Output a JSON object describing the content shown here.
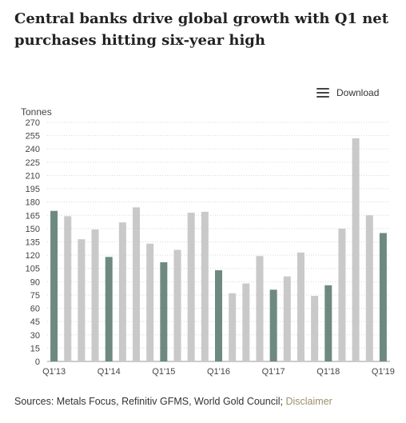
{
  "header": {
    "title": "Central banks drive global growth with Q1 net purchases hitting six-year high"
  },
  "toolbar": {
    "download_label": "Download"
  },
  "footer": {
    "sources_text": "Sources: Metals Focus, Refinitiv GFMS, World Gold Council; ",
    "disclaimer_label": "Disclaimer"
  },
  "chart_data": {
    "type": "bar",
    "ylabel": "Tonnes",
    "ylim": [
      0,
      270
    ],
    "ytick_step": 15,
    "grid": true,
    "categories": [
      "Q1'13",
      "Q2'13",
      "Q3'13",
      "Q4'13",
      "Q1'14",
      "Q2'14",
      "Q3'14",
      "Q4'14",
      "Q1'15",
      "Q2'15",
      "Q3'15",
      "Q4'15",
      "Q1'16",
      "Q2'16",
      "Q3'16",
      "Q4'16",
      "Q1'17",
      "Q2'17",
      "Q3'17",
      "Q4'17",
      "Q1'18",
      "Q2'18",
      "Q3'18",
      "Q4'18",
      "Q1'19"
    ],
    "xtick_labels": [
      "Q1'13",
      "Q1'14",
      "Q1'15",
      "Q1'16",
      "Q1'17",
      "Q1'18",
      "Q1'19"
    ],
    "values": [
      170,
      164,
      138,
      149,
      118,
      157,
      174,
      133,
      112,
      126,
      168,
      169,
      103,
      77,
      88,
      119,
      81,
      96,
      123,
      74,
      86,
      150,
      252,
      165,
      145
    ],
    "highlight_color": "#6e8a80",
    "base_color": "#c9c9c9"
  }
}
